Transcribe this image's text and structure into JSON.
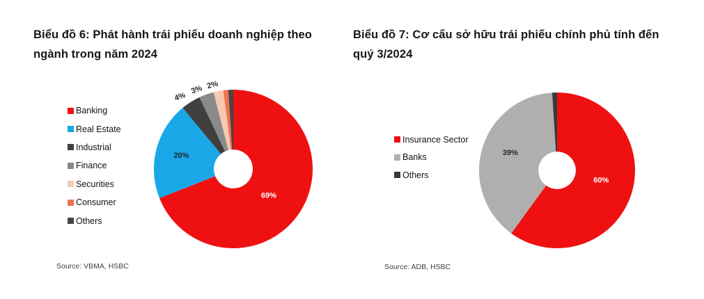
{
  "page": {
    "background": "#ffffff",
    "label_dark_color": "#20242c",
    "label_light_color": "#ffffff"
  },
  "chart_data": [
    {
      "type": "pie",
      "donut": true,
      "hole_ratio": 0.245,
      "title": "Biểu đồ 6: Phát hành trái phiếu doanh nghiệp theo ngành trong năm 2024",
      "source": "Source: VBMA, HSBC",
      "unit": "%",
      "legend_position": "left",
      "start_angle": "top",
      "direction": "clockwise",
      "categories": [
        "Banking",
        "Real Estate",
        "Industrial",
        "Finance",
        "Securities",
        "Consumer",
        "Others"
      ],
      "values": [
        69,
        20,
        4,
        3,
        2,
        1,
        1
      ],
      "colors": [
        "#EF1111",
        "#19A7E8",
        "#3F3F3F",
        "#8A8A8A",
        "#F7C9AE",
        "#EF7350",
        "#464646"
      ],
      "data_labels": [
        {
          "slice": 0,
          "text": "69%",
          "placement": "inside",
          "r_factor": 0.56,
          "color": "#ffffff",
          "rotate": 0,
          "angle_offset": 3
        },
        {
          "slice": 1,
          "text": "20%",
          "placement": "inside",
          "r_factor": 0.675,
          "color": "#20242c",
          "rotate": 0,
          "angle_offset": 0
        },
        {
          "slice": 2,
          "text": "4%",
          "placement": "outside",
          "r_factor": 1.13,
          "color": "#20242c",
          "rotate": -20,
          "angle_offset": -4
        },
        {
          "slice": 3,
          "text": "3%",
          "placement": "outside",
          "r_factor": 1.1,
          "color": "#20242c",
          "rotate": -20,
          "angle_offset": -5
        },
        {
          "slice": 4,
          "text": "2%",
          "placement": "outside",
          "r_factor": 1.09,
          "color": "#20242c",
          "rotate": -16,
          "angle_offset": -3
        }
      ]
    },
    {
      "type": "pie",
      "donut": true,
      "hole_ratio": 0.24,
      "title": "Biểu đồ 7: Cơ cấu sở hữu trái phiếu chính phủ tính đến quý 3/2024",
      "source": "Source: ADB, HSBC",
      "unit": "%",
      "legend_position": "left",
      "start_angle": "top",
      "direction": "clockwise",
      "categories": [
        "Insurance Sector",
        "Banks",
        "Others"
      ],
      "values": [
        60,
        39,
        1
      ],
      "colors": [
        "#EF1111",
        "#AFAFAF",
        "#3A3A3A"
      ],
      "data_labels": [
        {
          "slice": 0,
          "text": "60%",
          "placement": "inside",
          "r_factor": 0.58,
          "color": "#ffffff",
          "rotate": 0,
          "angle_offset": -5
        },
        {
          "slice": 1,
          "text": "39%",
          "placement": "inside",
          "r_factor": 0.64,
          "color": "#20242c",
          "rotate": 0,
          "angle_offset": 4
        }
      ]
    }
  ]
}
